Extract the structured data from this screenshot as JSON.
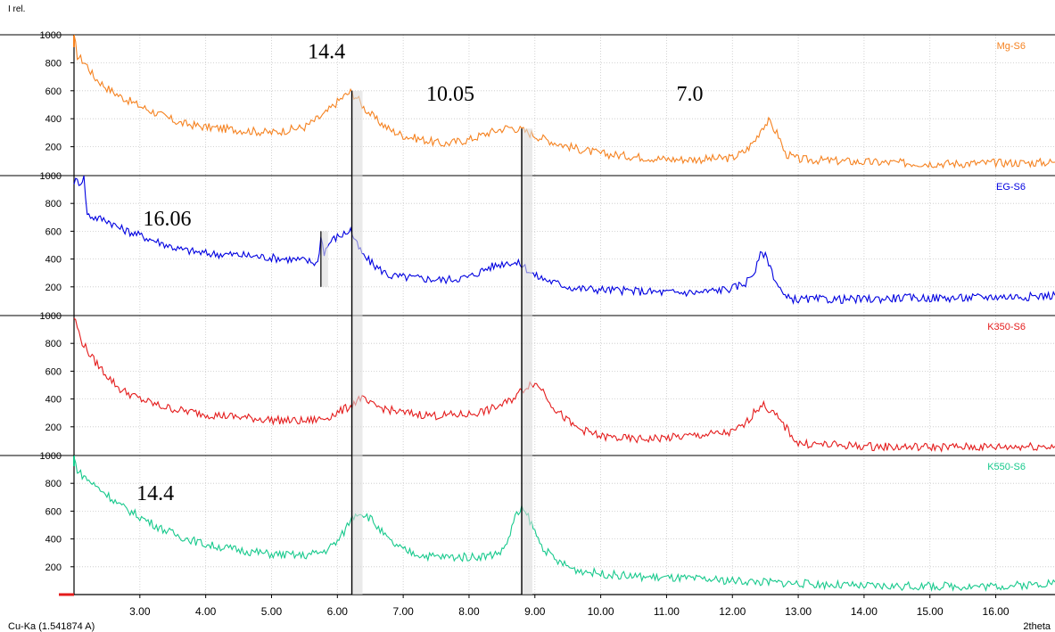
{
  "y_axis_label": "I rel.",
  "x_axis_label": "2theta",
  "radiation_label": "Cu-Ka (1.541874 A)",
  "peak_markers": [
    {
      "two_theta": 6.22,
      "d_label": "14.4"
    },
    {
      "two_theta": 8.8,
      "d_label": "10.05"
    }
  ],
  "colors": {
    "Mg-S6": "#f58220",
    "EG-S6": "#0000e0",
    "K350-S6": "#e41c1c",
    "K550-S6": "#17c98c",
    "marker": "#000000",
    "grid": "#c8c8c8"
  },
  "chart_data": {
    "type": "line",
    "xlabel": "2theta",
    "ylabel": "I rel.",
    "xlim": [
      2.0,
      16.9
    ],
    "ylim": [
      0,
      1000
    ],
    "x_ticks": [
      3.0,
      4.0,
      5.0,
      6.0,
      7.0,
      8.0,
      9.0,
      10.0,
      11.0,
      12.0,
      13.0,
      14.0,
      15.0,
      16.0
    ],
    "x_tick_labels": [
      "3.00",
      "4.00",
      "5.00",
      "6.00",
      "7.00",
      "8.00",
      "9.00",
      "10.00",
      "11.00",
      "12.00",
      "13.00",
      "14.00",
      "15.00",
      "16.00"
    ],
    "y_ticks": [
      200,
      400,
      600,
      800,
      1000
    ],
    "y_tick_labels": [
      "200",
      "400",
      "600",
      "800",
      "1000"
    ],
    "grid": true,
    "layout": "stacked panels",
    "series": [
      {
        "name": "Mg-S6",
        "annotations": [
          {
            "text": "14.4",
            "x": 5.55,
            "y": 830
          },
          {
            "text": "10.05",
            "x": 7.35,
            "y": 530
          },
          {
            "text": "7.0",
            "x": 11.15,
            "y": 530
          }
        ],
        "x": [
          2.0,
          2.05,
          2.1,
          2.2,
          2.3,
          2.5,
          2.7,
          3.0,
          3.3,
          3.6,
          4.0,
          4.5,
          5.0,
          5.5,
          5.8,
          6.0,
          6.1,
          6.2,
          6.3,
          6.4,
          6.6,
          6.8,
          7.0,
          7.3,
          7.6,
          8.0,
          8.3,
          8.6,
          8.8,
          9.0,
          9.3,
          9.6,
          10.0,
          10.5,
          11.0,
          11.5,
          12.0,
          12.2,
          12.35,
          12.45,
          12.55,
          12.7,
          12.8,
          13.0,
          13.5,
          14.0,
          14.5,
          15.0,
          15.5,
          16.0,
          16.5,
          16.9
        ],
        "y": [
          1000,
          850,
          830,
          780,
          700,
          620,
          560,
          490,
          430,
          370,
          340,
          320,
          300,
          340,
          430,
          520,
          560,
          590,
          550,
          480,
          390,
          320,
          280,
          250,
          220,
          250,
          300,
          340,
          320,
          280,
          230,
          190,
          150,
          130,
          110,
          110,
          120,
          170,
          250,
          340,
          380,
          280,
          150,
          110,
          100,
          90,
          85,
          80,
          80,
          85,
          85,
          90
        ]
      },
      {
        "name": "EG-S6",
        "annotations": [
          {
            "text": "16.06",
            "x": 3.05,
            "y": 640
          }
        ],
        "x": [
          2.0,
          2.05,
          2.1,
          2.15,
          2.2,
          2.3,
          2.5,
          2.7,
          3.0,
          3.3,
          3.6,
          4.0,
          4.5,
          5.0,
          5.5,
          5.7,
          5.75,
          5.8,
          5.9,
          6.0,
          6.1,
          6.2,
          6.3,
          6.4,
          6.6,
          6.8,
          7.0,
          7.3,
          7.6,
          8.0,
          8.3,
          8.6,
          8.8,
          9.0,
          9.3,
          9.6,
          10.0,
          10.5,
          11.0,
          11.5,
          12.0,
          12.2,
          12.35,
          12.45,
          12.55,
          12.65,
          12.8,
          13.0,
          13.5,
          14.0,
          14.5,
          15.0,
          15.5,
          16.0,
          16.5,
          16.9
        ],
        "y": [
          960,
          960,
          950,
          1000,
          720,
          700,
          680,
          620,
          570,
          520,
          470,
          440,
          430,
          410,
          390,
          370,
          560,
          450,
          530,
          560,
          580,
          610,
          500,
          420,
          340,
          280,
          270,
          260,
          250,
          270,
          340,
          380,
          360,
          280,
          230,
          190,
          180,
          170,
          160,
          160,
          190,
          230,
          320,
          460,
          380,
          250,
          120,
          110,
          110,
          110,
          120,
          120,
          120,
          130,
          130,
          140
        ]
      },
      {
        "name": "K350-S6",
        "x": [
          2.0,
          2.05,
          2.1,
          2.2,
          2.3,
          2.5,
          2.7,
          3.0,
          3.3,
          3.6,
          4.0,
          4.5,
          5.0,
          5.5,
          5.8,
          6.0,
          6.2,
          6.35,
          6.5,
          6.8,
          7.0,
          7.5,
          8.0,
          8.3,
          8.6,
          8.8,
          8.95,
          9.1,
          9.3,
          9.6,
          10.0,
          10.5,
          11.0,
          11.5,
          12.0,
          12.2,
          12.35,
          12.45,
          12.6,
          12.8,
          13.0,
          13.5,
          14.0,
          14.5,
          15.0,
          15.5,
          16.0,
          16.5,
          16.9
        ],
        "y": [
          990,
          920,
          830,
          750,
          680,
          570,
          470,
          400,
          350,
          320,
          290,
          270,
          250,
          240,
          260,
          300,
          350,
          410,
          360,
          320,
          300,
          280,
          290,
          320,
          380,
          460,
          520,
          480,
          330,
          200,
          130,
          110,
          120,
          140,
          160,
          220,
          320,
          360,
          310,
          200,
          80,
          70,
          60,
          55,
          55,
          55,
          55,
          60,
          60
        ]
      },
      {
        "name": "K550-S6",
        "annotations": [
          {
            "text": "14.4",
            "x": 2.95,
            "y": 680
          }
        ],
        "x": [
          2.0,
          2.05,
          2.1,
          2.2,
          2.3,
          2.5,
          2.7,
          3.0,
          3.3,
          3.6,
          4.0,
          4.5,
          5.0,
          5.5,
          5.8,
          6.0,
          6.1,
          6.2,
          6.3,
          6.4,
          6.5,
          6.6,
          6.8,
          7.0,
          7.3,
          7.6,
          8.0,
          8.3,
          8.5,
          8.6,
          8.7,
          8.8,
          8.9,
          9.0,
          9.1,
          9.3,
          9.6,
          10.0,
          10.5,
          11.0,
          11.5,
          12.0,
          12.5,
          13.0,
          13.5,
          14.0,
          14.5,
          15.0,
          15.5,
          16.0,
          16.5,
          16.9
        ],
        "y": [
          980,
          900,
          870,
          830,
          790,
          720,
          640,
          560,
          480,
          420,
          360,
          320,
          290,
          280,
          310,
          380,
          450,
          540,
          590,
          580,
          550,
          490,
          380,
          320,
          280,
          270,
          270,
          280,
          310,
          400,
          560,
          610,
          560,
          450,
          350,
          250,
          180,
          150,
          130,
          120,
          110,
          100,
          90,
          80,
          70,
          60,
          60,
          60,
          60,
          60,
          70,
          90
        ]
      }
    ]
  }
}
